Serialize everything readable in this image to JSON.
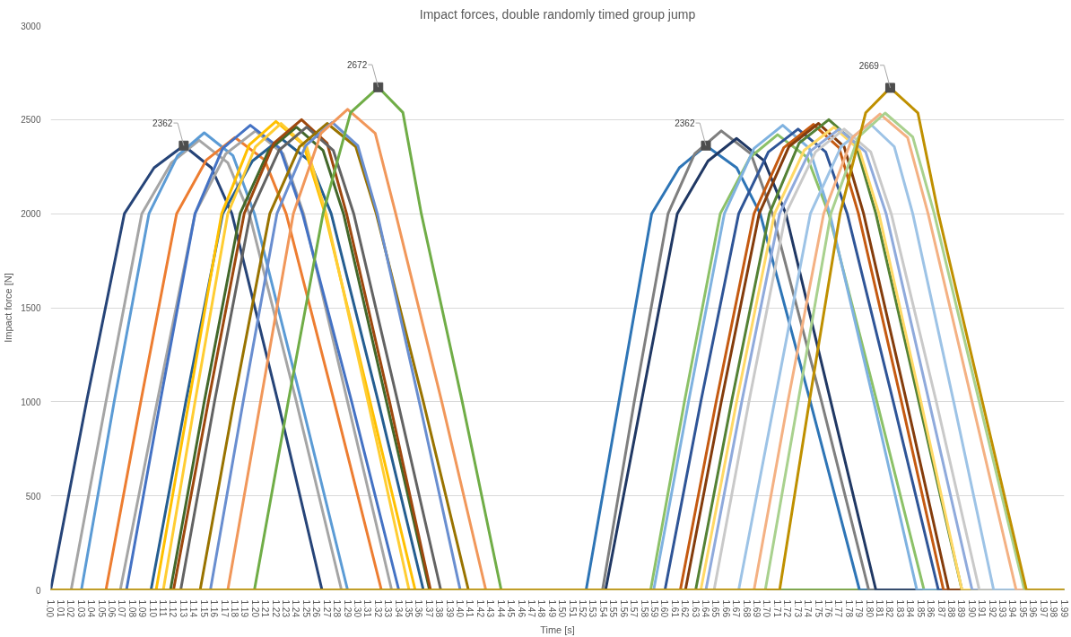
{
  "chart_data": {
    "type": "line",
    "title": "Impact forces, double randomly timed group jump",
    "xlabel": "Time [s]",
    "ylabel": "Impact force [N]",
    "xlim": [
      1.0,
      1.99
    ],
    "ylim": [
      0,
      3000
    ],
    "yticks": [
      0,
      500,
      1000,
      1500,
      2000,
      2500,
      3000
    ],
    "xticks": [
      {
        "value": 1.0,
        "label": "1.00"
      },
      {
        "value": 1.01,
        "label": "1.01"
      },
      {
        "value": 1.02,
        "label": "1.02"
      },
      {
        "value": 1.03,
        "label": "1.03"
      },
      {
        "value": 1.04,
        "label": "1.04"
      },
      {
        "value": 1.05,
        "label": "1.05"
      },
      {
        "value": 1.06,
        "label": "1.06"
      },
      {
        "value": 1.07,
        "label": "1.07"
      },
      {
        "value": 1.08,
        "label": "1.08"
      },
      {
        "value": 1.09,
        "label": "1.09"
      },
      {
        "value": 1.1,
        "label": "1.10"
      },
      {
        "value": 1.11,
        "label": "1.11"
      },
      {
        "value": 1.12,
        "label": "1.12"
      },
      {
        "value": 1.13,
        "label": "1.13"
      },
      {
        "value": 1.14,
        "label": "1.14"
      },
      {
        "value": 1.15,
        "label": "1.15"
      },
      {
        "value": 1.16,
        "label": "1.16"
      },
      {
        "value": 1.17,
        "label": "1.17"
      },
      {
        "value": 1.18,
        "label": "1.18"
      },
      {
        "value": 1.19,
        "label": "1.19"
      },
      {
        "value": 1.2,
        "label": "1.20"
      },
      {
        "value": 1.21,
        "label": "1.21"
      },
      {
        "value": 1.22,
        "label": "1.22"
      },
      {
        "value": 1.23,
        "label": "1.23"
      },
      {
        "value": 1.24,
        "label": "1.24"
      },
      {
        "value": 1.25,
        "label": "1.25"
      },
      {
        "value": 1.26,
        "label": "1.26"
      },
      {
        "value": 1.27,
        "label": "1.27"
      },
      {
        "value": 1.28,
        "label": "1.28"
      },
      {
        "value": 1.29,
        "label": "1.29"
      },
      {
        "value": 1.3,
        "label": "1.30"
      },
      {
        "value": 1.31,
        "label": "1.31"
      },
      {
        "value": 1.32,
        "label": "1.32"
      },
      {
        "value": 1.33,
        "label": "1.33"
      },
      {
        "value": 1.34,
        "label": "1.34"
      },
      {
        "value": 1.35,
        "label": "1.35"
      },
      {
        "value": 1.36,
        "label": "1.36"
      },
      {
        "value": 1.37,
        "label": "1.37"
      },
      {
        "value": 1.38,
        "label": "1.38"
      },
      {
        "value": 1.39,
        "label": "1.39"
      },
      {
        "value": 1.4,
        "label": "1.40"
      },
      {
        "value": 1.41,
        "label": "1.41"
      },
      {
        "value": 1.42,
        "label": "1.42"
      },
      {
        "value": 1.43,
        "label": "1.43"
      },
      {
        "value": 1.44,
        "label": "1.44"
      },
      {
        "value": 1.45,
        "label": "1.45"
      },
      {
        "value": 1.46,
        "label": "1.46"
      },
      {
        "value": 1.47,
        "label": "1.47"
      },
      {
        "value": 1.48,
        "label": "1.48"
      },
      {
        "value": 1.49,
        "label": "1.49"
      },
      {
        "value": 1.5,
        "label": "1.50"
      },
      {
        "value": 1.51,
        "label": "1.51"
      },
      {
        "value": 1.52,
        "label": "1.52"
      },
      {
        "value": 1.53,
        "label": "1.53"
      },
      {
        "value": 1.54,
        "label": "1.54"
      },
      {
        "value": 1.55,
        "label": "1.55"
      },
      {
        "value": 1.56,
        "label": "1.56"
      },
      {
        "value": 1.57,
        "label": "1.57"
      },
      {
        "value": 1.58,
        "label": "1.58"
      },
      {
        "value": 1.59,
        "label": "1.59"
      },
      {
        "value": 1.6,
        "label": "1.60"
      },
      {
        "value": 1.61,
        "label": "1.61"
      },
      {
        "value": 1.62,
        "label": "1.62"
      },
      {
        "value": 1.63,
        "label": "1.63"
      },
      {
        "value": 1.64,
        "label": "1.64"
      },
      {
        "value": 1.65,
        "label": "1.65"
      },
      {
        "value": 1.66,
        "label": "1.66"
      },
      {
        "value": 1.67,
        "label": "1.67"
      },
      {
        "value": 1.68,
        "label": "1.68"
      },
      {
        "value": 1.69,
        "label": "1.69"
      },
      {
        "value": 1.7,
        "label": "1.70"
      },
      {
        "value": 1.71,
        "label": "1.71"
      },
      {
        "value": 1.72,
        "label": "1.72"
      },
      {
        "value": 1.73,
        "label": "1.73"
      },
      {
        "value": 1.74,
        "label": "1.74"
      },
      {
        "value": 1.75,
        "label": "1.75"
      },
      {
        "value": 1.76,
        "label": "1.76"
      },
      {
        "value": 1.77,
        "label": "1.77"
      },
      {
        "value": 1.78,
        "label": "1.78"
      },
      {
        "value": 1.79,
        "label": "1.79"
      },
      {
        "value": 1.8,
        "label": "1.80"
      },
      {
        "value": 1.81,
        "label": "1.81"
      },
      {
        "value": 1.82,
        "label": "1.82"
      },
      {
        "value": 1.83,
        "label": "1.83"
      },
      {
        "value": 1.84,
        "label": "1.84"
      },
      {
        "value": 1.85,
        "label": "1.85"
      },
      {
        "value": 1.86,
        "label": "1.86"
      },
      {
        "value": 1.87,
        "label": "1.87"
      },
      {
        "value": 1.88,
        "label": "1.88"
      },
      {
        "value": 1.89,
        "label": "1.89"
      },
      {
        "value": 1.9,
        "label": "1.90"
      },
      {
        "value": 1.91,
        "label": "1.91"
      },
      {
        "value": 1.92,
        "label": "1.92"
      },
      {
        "value": 1.93,
        "label": "1.93"
      },
      {
        "value": 1.94,
        "label": "1.94"
      },
      {
        "value": 1.95,
        "label": "1.95"
      },
      {
        "value": 1.96,
        "label": "1.96"
      },
      {
        "value": 1.97,
        "label": "1.97"
      },
      {
        "value": 1.98,
        "label": "1.98"
      },
      {
        "value": 1.99,
        "label": "1.99"
      }
    ],
    "grid": "y",
    "marker": "none",
    "line_style": "solid",
    "annotations": [
      {
        "text": "2362",
        "x": 1.13,
        "y": 2362
      },
      {
        "text": "2672",
        "x": 1.32,
        "y": 2672
      },
      {
        "text": "2362",
        "x": 1.64,
        "y": 2362
      },
      {
        "text": "2669",
        "x": 1.82,
        "y": 2669
      }
    ],
    "series": [
      {
        "color": "#264478",
        "x": [
          1.0,
          1.035,
          1.072,
          1.101,
          1.13,
          1.157,
          1.177,
          1.222,
          1.265,
          1.99
        ],
        "values": [
          0,
          1000,
          2000,
          2244,
          2362,
          2244,
          2000,
          1000,
          0,
          0
        ]
      },
      {
        "color": "#a5a5a5",
        "x": [
          1.0,
          1.02,
          1.054,
          1.089,
          1.118,
          1.145,
          1.173,
          1.194,
          1.24,
          1.284,
          1.99
        ],
        "values": [
          0,
          0,
          1000,
          2000,
          2271,
          2390,
          2271,
          2000,
          1000,
          0,
          0
        ]
      },
      {
        "color": "#5b9bd5",
        "x": [
          1.0,
          1.03,
          1.062,
          1.096,
          1.124,
          1.15,
          1.178,
          1.199,
          1.245,
          1.29,
          1.99
        ],
        "values": [
          0,
          0,
          1000,
          2000,
          2309,
          2430,
          2309,
          2000,
          1000,
          0,
          0
        ]
      },
      {
        "color": "#ed7d31",
        "x": [
          1.0,
          1.054,
          1.088,
          1.123,
          1.152,
          1.18,
          1.209,
          1.23,
          1.277,
          1.323,
          1.99
        ],
        "values": [
          0,
          0,
          1000,
          2000,
          2285,
          2405,
          2285,
          2000,
          1000,
          0,
          0
        ]
      },
      {
        "color": "#a5a5a5",
        "x": [
          1.0,
          1.068,
          1.104,
          1.141,
          1.171,
          1.2,
          1.227,
          1.247,
          1.29,
          1.333,
          1.99
        ],
        "values": [
          0,
          0,
          1000,
          2000,
          2318,
          2440,
          2318,
          2000,
          1000,
          0,
          0
        ]
      },
      {
        "color": "#4472c4",
        "x": [
          1.0,
          1.074,
          1.107,
          1.141,
          1.168,
          1.195,
          1.224,
          1.246,
          1.294,
          1.34,
          1.99
        ],
        "values": [
          0,
          0,
          1000,
          2000,
          2347,
          2470,
          2347,
          2000,
          1000,
          0,
          0
        ]
      },
      {
        "color": "#255e91",
        "x": [
          1.0,
          1.098,
          1.132,
          1.168,
          1.197,
          1.225,
          1.253,
          1.274,
          1.32,
          1.364,
          1.99
        ],
        "values": [
          0,
          0,
          1000,
          2000,
          2280,
          2400,
          2280,
          2000,
          1000,
          0,
          0
        ]
      },
      {
        "color": "#ffc000",
        "x": [
          1.0,
          1.103,
          1.135,
          1.167,
          1.194,
          1.22,
          1.247,
          1.268,
          1.312,
          1.356,
          1.99
        ],
        "values": [
          0,
          0,
          1000,
          2000,
          2366,
          2490,
          2366,
          2000,
          1000,
          0,
          0
        ]
      },
      {
        "color": "#ffcd33",
        "x": [
          1.0,
          1.11,
          1.141,
          1.173,
          1.2,
          1.225,
          1.25,
          1.269,
          1.31,
          1.35,
          1.99
        ],
        "values": [
          0,
          0,
          1000,
          2000,
          2356,
          2480,
          2356,
          2000,
          1000,
          0,
          0
        ]
      },
      {
        "color": "#43682b",
        "x": [
          1.0,
          1.117,
          1.15,
          1.185,
          1.213,
          1.24,
          1.266,
          1.286,
          1.328,
          1.37,
          1.99
        ],
        "values": [
          0,
          0,
          1000,
          2000,
          2337,
          2460,
          2337,
          2000,
          1000,
          0,
          0
        ]
      },
      {
        "color": "#9e480e",
        "x": [
          1.0,
          1.12,
          1.154,
          1.189,
          1.218,
          1.245,
          1.27,
          1.289,
          1.331,
          1.371,
          1.99
        ],
        "values": [
          0,
          0,
          1000,
          2000,
          2375,
          2500,
          2375,
          2000,
          1000,
          0,
          0
        ]
      },
      {
        "color": "#636363",
        "x": [
          1.0,
          1.127,
          1.16,
          1.195,
          1.223,
          1.25,
          1.276,
          1.296,
          1.339,
          1.381,
          1.99
        ],
        "values": [
          0,
          0,
          1000,
          2000,
          2337,
          2460,
          2337,
          2000,
          1000,
          0,
          0
        ]
      },
      {
        "color": "#997300",
        "x": [
          1.0,
          1.146,
          1.179,
          1.214,
          1.243,
          1.27,
          1.298,
          1.318,
          1.364,
          1.408,
          1.99
        ],
        "values": [
          0,
          0,
          1000,
          2000,
          2356,
          2480,
          2356,
          2000,
          1000,
          0,
          0
        ]
      },
      {
        "color": "#698ed0",
        "x": [
          1.0,
          1.156,
          1.188,
          1.221,
          1.249,
          1.275,
          1.3,
          1.319,
          1.36,
          1.4,
          1.99
        ],
        "values": [
          0,
          0,
          1000,
          2000,
          2361,
          2485,
          2361,
          2000,
          1000,
          0,
          0
        ]
      },
      {
        "color": "#f1975a",
        "x": [
          1.0,
          1.173,
          1.205,
          1.237,
          1.264,
          1.29,
          1.317,
          1.337,
          1.382,
          1.425,
          1.99
        ],
        "values": [
          0,
          0,
          1000,
          2000,
          2427,
          2555,
          2427,
          2000,
          1000,
          0,
          0
        ]
      },
      {
        "color": "#70ad47",
        "x": [
          1.0,
          1.199,
          1.232,
          1.266,
          1.293,
          1.32,
          1.344,
          1.362,
          1.402,
          1.44,
          1.99
        ],
        "values": [
          0,
          0,
          1000,
          2000,
          2538,
          2672,
          2538,
          2000,
          1000,
          0,
          0
        ]
      },
      {
        "color": "#2e75b6",
        "x": [
          1.0,
          1.523,
          1.555,
          1.587,
          1.614,
          1.64,
          1.67,
          1.693,
          1.742,
          1.79,
          1.99
        ],
        "values": [
          0,
          0,
          1000,
          2000,
          2244,
          2362,
          2244,
          2000,
          1000,
          0,
          0
        ]
      },
      {
        "color": "#7f7f7f",
        "x": [
          1.0,
          1.539,
          1.57,
          1.603,
          1.629,
          1.655,
          1.684,
          1.705,
          1.753,
          1.799,
          1.99
        ],
        "values": [
          0,
          0,
          1000,
          2000,
          2318,
          2440,
          2318,
          2000,
          1000,
          0,
          0
        ]
      },
      {
        "color": "#203864",
        "x": [
          1.0,
          1.542,
          1.577,
          1.612,
          1.642,
          1.67,
          1.697,
          1.718,
          1.762,
          1.806,
          1.99
        ],
        "values": [
          0,
          0,
          1000,
          2000,
          2280,
          2400,
          2280,
          2000,
          1000,
          0,
          0
        ]
      },
      {
        "color": "#8cc168",
        "x": [
          1.0,
          1.586,
          1.619,
          1.654,
          1.683,
          1.71,
          1.739,
          1.76,
          1.807,
          1.853,
          1.99
        ],
        "values": [
          0,
          0,
          1000,
          2000,
          2299,
          2420,
          2299,
          2000,
          1000,
          0,
          0
        ]
      },
      {
        "color": "#7fb2e0",
        "x": [
          1.0,
          1.589,
          1.623,
          1.658,
          1.687,
          1.715,
          1.741,
          1.761,
          1.804,
          1.846,
          1.99
        ],
        "values": [
          0,
          0,
          1000,
          2000,
          2347,
          2470,
          2347,
          2000,
          1000,
          0,
          0
        ]
      },
      {
        "color": "#2f5597",
        "x": [
          1.0,
          1.6,
          1.635,
          1.672,
          1.701,
          1.73,
          1.757,
          1.778,
          1.823,
          1.867,
          1.99
        ],
        "values": [
          0,
          0,
          1000,
          2000,
          2328,
          2450,
          2328,
          2000,
          1000,
          0,
          0
        ]
      },
      {
        "color": "#c55a11",
        "x": [
          1.0,
          1.615,
          1.65,
          1.687,
          1.716,
          1.745,
          1.77,
          1.789,
          1.831,
          1.872,
          1.99
        ],
        "values": [
          0,
          0,
          1000,
          2000,
          2351,
          2475,
          2351,
          2000,
          1000,
          0,
          0
        ]
      },
      {
        "color": "#843c0c",
        "x": [
          1.0,
          1.62,
          1.655,
          1.692,
          1.721,
          1.75,
          1.775,
          1.794,
          1.836,
          1.877,
          1.99
        ],
        "values": [
          0,
          0,
          1000,
          2000,
          2356,
          2480,
          2356,
          2000,
          1000,
          0,
          0
        ]
      },
      {
        "color": "#548235",
        "x": [
          1.0,
          1.63,
          1.665,
          1.702,
          1.731,
          1.76,
          1.786,
          1.806,
          1.848,
          1.89,
          1.99
        ],
        "values": [
          0,
          0,
          1000,
          2000,
          2375,
          2500,
          2375,
          2000,
          1000,
          0,
          0
        ]
      },
      {
        "color": "#ffd966",
        "x": [
          1.0,
          1.635,
          1.67,
          1.707,
          1.736,
          1.765,
          1.79,
          1.809,
          1.85,
          1.89,
          1.99
        ],
        "values": [
          0,
          0,
          1000,
          2000,
          2337,
          2460,
          2337,
          2000,
          1000,
          0,
          0
        ]
      },
      {
        "color": "#8faadc",
        "x": [
          1.0,
          1.64,
          1.675,
          1.712,
          1.741,
          1.77,
          1.796,
          1.816,
          1.858,
          1.9,
          1.99
        ],
        "values": [
          0,
          0,
          1000,
          2000,
          2328,
          2450,
          2328,
          2000,
          1000,
          0,
          0
        ]
      },
      {
        "color": "#c9c9c9",
        "x": [
          1.0,
          1.648,
          1.682,
          1.718,
          1.747,
          1.775,
          1.801,
          1.821,
          1.865,
          1.907,
          1.99
        ],
        "values": [
          0,
          0,
          1000,
          2000,
          2328,
          2450,
          2328,
          2000,
          1000,
          0,
          0
        ]
      },
      {
        "color": "#9dc3e6",
        "x": [
          1.0,
          1.672,
          1.707,
          1.742,
          1.772,
          1.8,
          1.824,
          1.842,
          1.882,
          1.921,
          1.99
        ],
        "values": [
          0,
          0,
          1000,
          2000,
          2356,
          2480,
          2356,
          2000,
          1000,
          0,
          0
        ]
      },
      {
        "color": "#f4b183",
        "x": [
          1.0,
          1.687,
          1.72,
          1.755,
          1.783,
          1.81,
          1.837,
          1.857,
          1.9,
          1.943,
          1.99
        ],
        "values": [
          0,
          0,
          1000,
          2000,
          2404,
          2530,
          2404,
          2000,
          1000,
          0,
          0
        ]
      },
      {
        "color": "#a9d18e",
        "x": [
          1.0,
          1.698,
          1.73,
          1.762,
          1.789,
          1.815,
          1.842,
          1.863,
          1.907,
          1.951,
          1.99
        ],
        "values": [
          0,
          0,
          1000,
          2000,
          2408,
          2535,
          2408,
          2000,
          1000,
          0,
          0
        ]
      },
      {
        "color": "#bf9000",
        "x": [
          1.0,
          1.712,
          1.741,
          1.771,
          1.796,
          1.82,
          1.847,
          1.867,
          1.91,
          1.953,
          1.99
        ],
        "values": [
          0,
          0,
          1000,
          2000,
          2536,
          2669,
          2536,
          2000,
          1000,
          0,
          0
        ]
      }
    ]
  }
}
